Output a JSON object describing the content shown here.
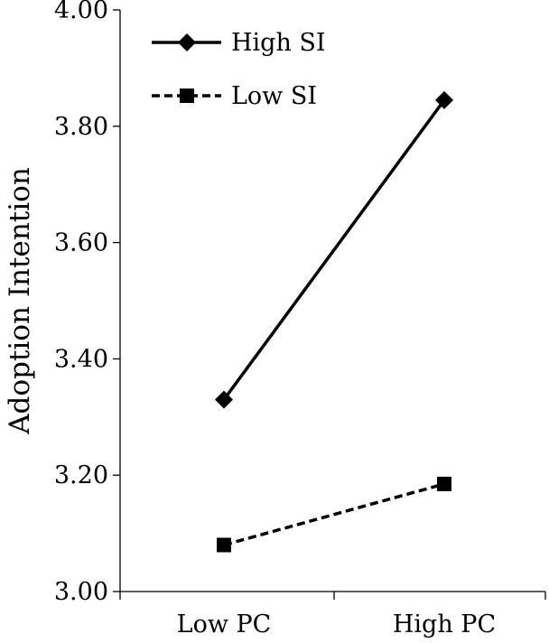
{
  "chart_data": {
    "type": "line",
    "title": "",
    "xlabel": "",
    "ylabel": "Adoption Intention",
    "categories": [
      "Low PC",
      "High PC"
    ],
    "ylim": [
      3.0,
      4.0
    ],
    "yticks": [
      "3.00",
      "3.20",
      "3.40",
      "3.60",
      "3.80",
      "4.00"
    ],
    "grid": false,
    "legend_position": "top-left",
    "series": [
      {
        "name": "High SI",
        "values": [
          3.33,
          3.845
        ],
        "line_style": "solid",
        "marker": "diamond",
        "color": "#000000"
      },
      {
        "name": "Low SI",
        "values": [
          3.08,
          3.185
        ],
        "line_style": "dashed",
        "marker": "square",
        "color": "#000000"
      }
    ]
  }
}
